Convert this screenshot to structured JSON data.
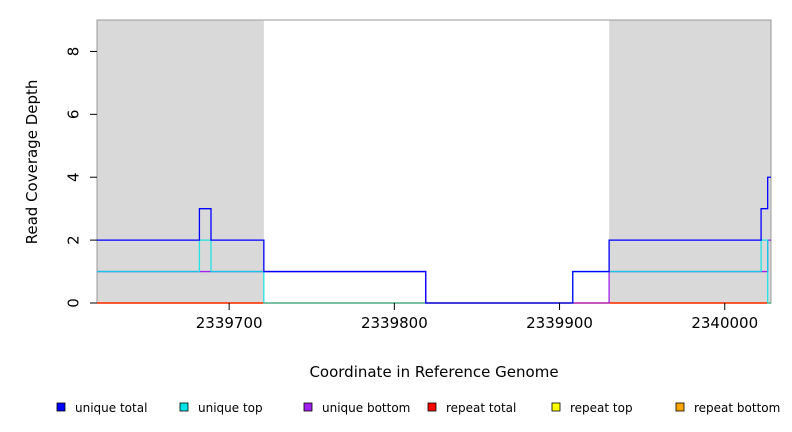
{
  "chart_data": {
    "type": "line",
    "title": "",
    "xlabel": "Coordinate in Reference Genome",
    "ylabel": "Read Coverage Depth",
    "xlim": [
      2339620,
      2340028
    ],
    "ylim": [
      0,
      9
    ],
    "x_ticks": [
      2339700,
      2339800,
      2339900,
      2340000
    ],
    "x_tick_labels": [
      "2339700",
      "2339800",
      "2339900",
      "2340000"
    ],
    "y_ticks": [
      0,
      2,
      4,
      6,
      8
    ],
    "y_tick_labels": [
      "0",
      "2",
      "4",
      "6",
      "8"
    ],
    "shaded_regions": [
      {
        "x0": 2339620,
        "x1": 2339721,
        "color": "#d9d9d9"
      },
      {
        "x0": 2339930,
        "x1": 2340028,
        "color": "#d9d9d9"
      }
    ],
    "legend_position": "bottom",
    "series": [
      {
        "name": "unique total",
        "color": "#0000ff",
        "step": true,
        "points": [
          [
            2339620,
            2
          ],
          [
            2339682,
            3
          ],
          [
            2339689,
            2
          ],
          [
            2339721,
            1
          ],
          [
            2339819,
            0
          ],
          [
            2339908,
            1
          ],
          [
            2339930,
            2
          ],
          [
            2340022,
            3
          ],
          [
            2340026,
            4
          ],
          [
            2340028,
            4
          ]
        ]
      },
      {
        "name": "unique top",
        "color": "#00e5e5",
        "step": true,
        "points": [
          [
            2339620,
            1
          ],
          [
            2339682,
            2
          ],
          [
            2339689,
            1
          ],
          [
            2339721,
            0
          ],
          [
            2339908,
            1
          ],
          [
            2340022,
            2
          ],
          [
            2340026,
            0
          ],
          [
            2340028,
            0
          ]
        ]
      },
      {
        "name": "unique bottom",
        "color": "#a020f0",
        "step": true,
        "points": [
          [
            2339620,
            1
          ],
          [
            2339721,
            1
          ],
          [
            2339819,
            0
          ],
          [
            2339930,
            1
          ],
          [
            2340022,
            1
          ],
          [
            2340026,
            2
          ],
          [
            2340028,
            2
          ]
        ]
      },
      {
        "name": "repeat total",
        "color": "#ff0000",
        "step": true,
        "points": [
          [
            2339620,
            0
          ],
          [
            2340028,
            0
          ]
        ]
      },
      {
        "name": "repeat top",
        "color": "#ffff00",
        "step": true,
        "points": [
          [
            2339620,
            0
          ],
          [
            2340028,
            0
          ]
        ]
      },
      {
        "name": "repeat bottom",
        "color": "#ffa500",
        "step": true,
        "points": [
          [
            2339620,
            0
          ],
          [
            2340028,
            0
          ]
        ]
      }
    ]
  }
}
